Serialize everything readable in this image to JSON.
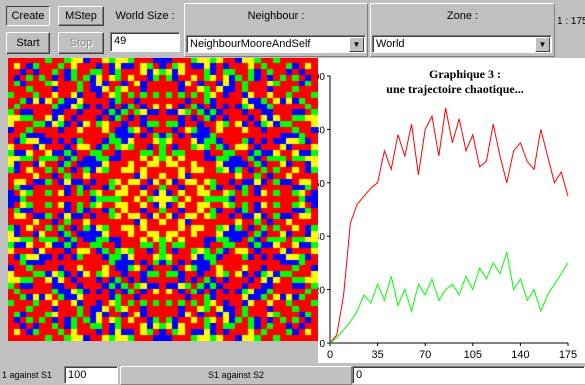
{
  "toolbar": {
    "create_label": "Create",
    "mstep_label": "MStep",
    "start_label": "Start",
    "stop_label": "Stop",
    "world_size_label": "World Size :",
    "world_size_value": "49",
    "neighbour_label": "Neighbour :",
    "neighbour_value": "NeighbourMooreAndSelf",
    "zone_label": "Zone :",
    "zone_value": "World",
    "counter_text": "1 : 175"
  },
  "grid": {
    "colors": [
      "#0000ff",
      "#ff0000",
      "#00ff00",
      "#ffff00"
    ]
  },
  "chart_data": {
    "type": "line",
    "title": "Graphique 3 :",
    "subtitle": "une trajectoire chaotique...",
    "xlabel": "",
    "ylabel": "",
    "xlim": [
      0,
      175
    ],
    "ylim": [
      0,
      100
    ],
    "x_ticks": [
      "0",
      "35",
      "70",
      "105",
      "140",
      "175"
    ],
    "y_ticks": [
      "0",
      "20",
      "40",
      "60",
      "80",
      "100"
    ],
    "grid": false,
    "series": [
      {
        "color": "#ff0000",
        "x": [
          0,
          5,
          10,
          15,
          20,
          25,
          30,
          35,
          40,
          45,
          50,
          55,
          60,
          65,
          70,
          75,
          80,
          85,
          90,
          95,
          100,
          105,
          110,
          115,
          120,
          125,
          130,
          135,
          140,
          145,
          150,
          155,
          160,
          165,
          170,
          175
        ],
        "values": [
          0,
          3,
          18,
          45,
          52,
          55,
          58,
          60,
          72,
          65,
          78,
          70,
          82,
          63,
          80,
          85,
          70,
          88,
          75,
          84,
          72,
          78,
          66,
          68,
          82,
          70,
          60,
          72,
          75,
          68,
          65,
          80,
          70,
          60,
          64,
          55
        ]
      },
      {
        "color": "#00ff00",
        "x": [
          0,
          5,
          10,
          15,
          20,
          25,
          30,
          35,
          40,
          45,
          50,
          55,
          60,
          65,
          70,
          75,
          80,
          85,
          90,
          95,
          100,
          105,
          110,
          115,
          120,
          125,
          130,
          135,
          140,
          145,
          150,
          155,
          160,
          165,
          170,
          175
        ],
        "values": [
          0,
          2,
          5,
          8,
          12,
          18,
          15,
          22,
          16,
          25,
          14,
          20,
          12,
          22,
          18,
          24,
          16,
          20,
          22,
          18,
          25,
          20,
          28,
          24,
          30,
          26,
          34,
          20,
          24,
          16,
          20,
          12,
          18,
          22,
          26,
          30
        ]
      }
    ]
  },
  "status": {
    "s1_label": "1 against S1",
    "s1_value": "100",
    "s2_label": "S1 against S2",
    "s2_value": "0"
  }
}
